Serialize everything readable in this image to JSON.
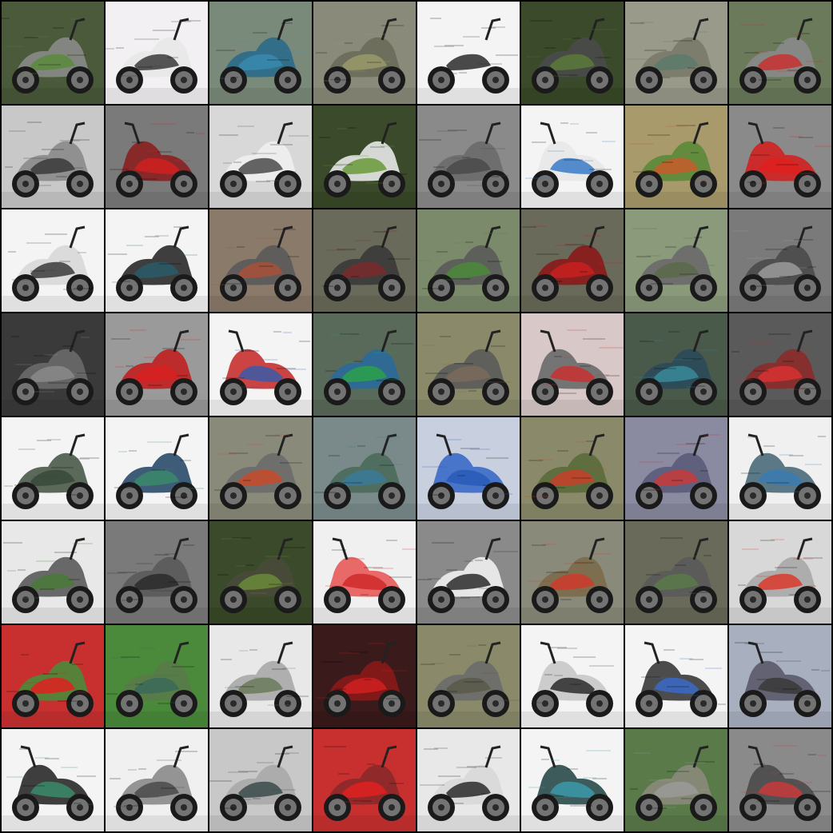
{
  "grid": {
    "rows": 8,
    "cols": 8,
    "tiles": [
      {
        "bg": "#4a5a3a",
        "accent": "#5c8a3c",
        "body": "#8a8a8a",
        "view": "side-left"
      },
      {
        "bg": "#f2f0f2",
        "accent": "#3a3a3a",
        "body": "#e8e8e8",
        "view": "side-left"
      },
      {
        "bg": "#7a8a7a",
        "accent": "#3a8ab0",
        "body": "#2a6a8a",
        "view": "side-left"
      },
      {
        "bg": "#8a8a7a",
        "accent": "#9a9a6a",
        "body": "#6a6a5a",
        "view": "side-left"
      },
      {
        "bg": "#f4f4f4",
        "accent": "#2a2a2a",
        "body": "#f4f4f4",
        "view": "side-left"
      },
      {
        "bg": "#3a4a2a",
        "accent": "#5a7a3a",
        "body": "#4a4a4a",
        "view": "side-left"
      },
      {
        "bg": "#9a9a8a",
        "accent": "#5a7a6a",
        "body": "#7a7a6a",
        "view": "side-left"
      },
      {
        "bg": "#6a7a5a",
        "accent": "#c83030",
        "body": "#8a8a8a",
        "view": "side-left"
      },
      {
        "bg": "#c8c8c8",
        "accent": "#3a3a3a",
        "body": "#8a8a8a",
        "view": "side-left"
      },
      {
        "bg": "#7a7a7a",
        "accent": "#d02020",
        "body": "#8a2020",
        "view": "side-right"
      },
      {
        "bg": "#d8d8d8",
        "accent": "#4a4a4a",
        "body": "#f0f0f0",
        "view": "side-left"
      },
      {
        "bg": "#3a4a2a",
        "accent": "#6a9a3a",
        "body": "#e8e8e8",
        "view": "side-left"
      },
      {
        "bg": "#8a8a8a",
        "accent": "#4a4a4a",
        "body": "#6a6a6a",
        "view": "side-left"
      },
      {
        "bg": "#f4f4f4",
        "accent": "#3a7ac8",
        "body": "#e8e8e8",
        "view": "side-right"
      },
      {
        "bg": "#a89a6a",
        "accent": "#c85a2a",
        "body": "#5a8a3a",
        "view": "side-left"
      },
      {
        "bg": "#8a8a8a",
        "accent": "#e02020",
        "body": "#d02020",
        "view": "side-right"
      },
      {
        "bg": "#f4f4f4",
        "accent": "#3a3a3a",
        "body": "#d8d8d8",
        "view": "side-left"
      },
      {
        "bg": "#f4f4f4",
        "accent": "#2a5a6a",
        "body": "#2a2a2a",
        "view": "side-left"
      },
      {
        "bg": "#8a7a6a",
        "accent": "#a8503a",
        "body": "#5a5a5a",
        "view": "side-left"
      },
      {
        "bg": "#6a6a5a",
        "accent": "#7a2a2a",
        "body": "#3a3a3a",
        "view": "side-left"
      },
      {
        "bg": "#7a8a6a",
        "accent": "#4a8a3a",
        "body": "#5a5a5a",
        "view": "side-left"
      },
      {
        "bg": "#6a6a5a",
        "accent": "#c82020",
        "body": "#8a1a1a",
        "view": "side-left"
      },
      {
        "bg": "#8a9a7a",
        "accent": "#5a6a4a",
        "body": "#6a6a6a",
        "view": "side-left"
      },
      {
        "bg": "#7a7a7a",
        "accent": "#9a9a9a",
        "body": "#4a4a4a",
        "view": "side-left"
      },
      {
        "bg": "#3a3a3a",
        "accent": "#8a8a8a",
        "body": "#6a6a6a",
        "view": "side-left"
      },
      {
        "bg": "#9a9a9a",
        "accent": "#d82020",
        "body": "#c02020",
        "view": "side-left"
      },
      {
        "bg": "#f4f4f4",
        "accent": "#3a5aa8",
        "body": "#c83030",
        "view": "side-right"
      },
      {
        "bg": "#5a6a5a",
        "accent": "#2aa04a",
        "body": "#2a6a9a",
        "view": "side-left"
      },
      {
        "bg": "#8a8a6a",
        "accent": "#7a6a5a",
        "body": "#5a5a5a",
        "view": "side-left"
      },
      {
        "bg": "#d8c8c8",
        "accent": "#c83030",
        "body": "#6a6a6a",
        "view": "side-right"
      },
      {
        "bg": "#4a5a4a",
        "accent": "#3a8a9a",
        "body": "#2a4a5a",
        "view": "side-left"
      },
      {
        "bg": "#5a5a5a",
        "accent": "#d83030",
        "body": "#8a2a2a",
        "view": "side-left"
      },
      {
        "bg": "#f4f4f4",
        "accent": "#3a4a3a",
        "body": "#4a5a4a",
        "view": "side-left"
      },
      {
        "bg": "#f4f4f4",
        "accent": "#3a8a6a",
        "body": "#2a4a6a",
        "view": "side-left"
      },
      {
        "bg": "#8a8a7a",
        "accent": "#c84a2a",
        "body": "#6a6a6a",
        "view": "side-left"
      },
      {
        "bg": "#7a8a8a",
        "accent": "#3a7a9a",
        "body": "#4a6a5a",
        "view": "side-left"
      },
      {
        "bg": "#c8d0e0",
        "accent": "#2a5ab8",
        "body": "#3a6ac8",
        "view": "side-right"
      },
      {
        "bg": "#8a8a6a",
        "accent": "#c8402a",
        "body": "#5a6a3a",
        "view": "side-left"
      },
      {
        "bg": "#8a8aa0",
        "accent": "#c83a3a",
        "body": "#5a5a7a",
        "view": "side-left"
      },
      {
        "bg": "#f0f0f0",
        "accent": "#3a7ab0",
        "body": "#4a6a7a",
        "view": "side-right"
      },
      {
        "bg": "#e8e8e8",
        "accent": "#4a7a3a",
        "body": "#5a5a5a",
        "view": "side-left"
      },
      {
        "bg": "#7a7a7a",
        "accent": "#2a2a2a",
        "body": "#5a5a5a",
        "view": "side-left"
      },
      {
        "bg": "#3a4a2a",
        "accent": "#6a8a3a",
        "body": "#4a4a3a",
        "view": "side-left"
      },
      {
        "bg": "#f0f0f0",
        "accent": "#d02a2a",
        "body": "#e85a5a",
        "view": "side-right"
      },
      {
        "bg": "#8a8a8a",
        "accent": "#2a2a2a",
        "body": "#f0f0f0",
        "view": "side-left"
      },
      {
        "bg": "#8a8a7a",
        "accent": "#d03a2a",
        "body": "#7a6a4a",
        "view": "side-left"
      },
      {
        "bg": "#6a6a5a",
        "accent": "#5a7a4a",
        "body": "#5a5a5a",
        "view": "side-left"
      },
      {
        "bg": "#d8d8d8",
        "accent": "#d83a2a",
        "body": "#a8a8a8",
        "view": "side-left"
      },
      {
        "bg": "#c83030",
        "accent": "#e02020",
        "body": "#4a8a3a",
        "view": "side-left"
      },
      {
        "bg": "#4a8a3a",
        "accent": "#3a6a5a",
        "body": "#5a7a4a",
        "view": "side-left"
      },
      {
        "bg": "#e8e8e8",
        "accent": "#6a7a5a",
        "body": "#a8a8a8",
        "view": "side-left"
      },
      {
        "bg": "#3a1a1a",
        "accent": "#d02020",
        "body": "#8a1a1a",
        "view": "side-left"
      },
      {
        "bg": "#8a8a6a",
        "accent": "#5a5a4a",
        "body": "#6a6a6a",
        "view": "side-left"
      },
      {
        "bg": "#f4f4f4",
        "accent": "#2a2a2a",
        "body": "#c8c8c8",
        "view": "side-right"
      },
      {
        "bg": "#f4f4f4",
        "accent": "#3a6ac8",
        "body": "#3a3a3a",
        "view": "side-right"
      },
      {
        "bg": "#a8b0c0",
        "accent": "#3a3a3a",
        "body": "#5a5a6a",
        "view": "side-right"
      },
      {
        "bg": "#f4f4f4",
        "accent": "#3a8a6a",
        "body": "#2a2a2a",
        "view": "side-right"
      },
      {
        "bg": "#f0f0f0",
        "accent": "#4a4a4a",
        "body": "#8a8a8a",
        "view": "side-left"
      },
      {
        "bg": "#c8c8c8",
        "accent": "#3a4a4a",
        "body": "#a8a8a8",
        "view": "side-left"
      },
      {
        "bg": "#c83030",
        "accent": "#e02020",
        "body": "#8a2a2a",
        "view": "side-left"
      },
      {
        "bg": "#e8e8e8",
        "accent": "#2a2a2a",
        "body": "#d8d8d8",
        "view": "side-left"
      },
      {
        "bg": "#f4f4f4",
        "accent": "#3a9aa8",
        "body": "#2a4a4a",
        "view": "side-right"
      },
      {
        "bg": "#5a7a4a",
        "accent": "#9a9a9a",
        "body": "#8a8a7a",
        "view": "side-left"
      },
      {
        "bg": "#8a8a8a",
        "accent": "#c83a3a",
        "body": "#4a4a4a",
        "view": "side-right"
      }
    ]
  }
}
